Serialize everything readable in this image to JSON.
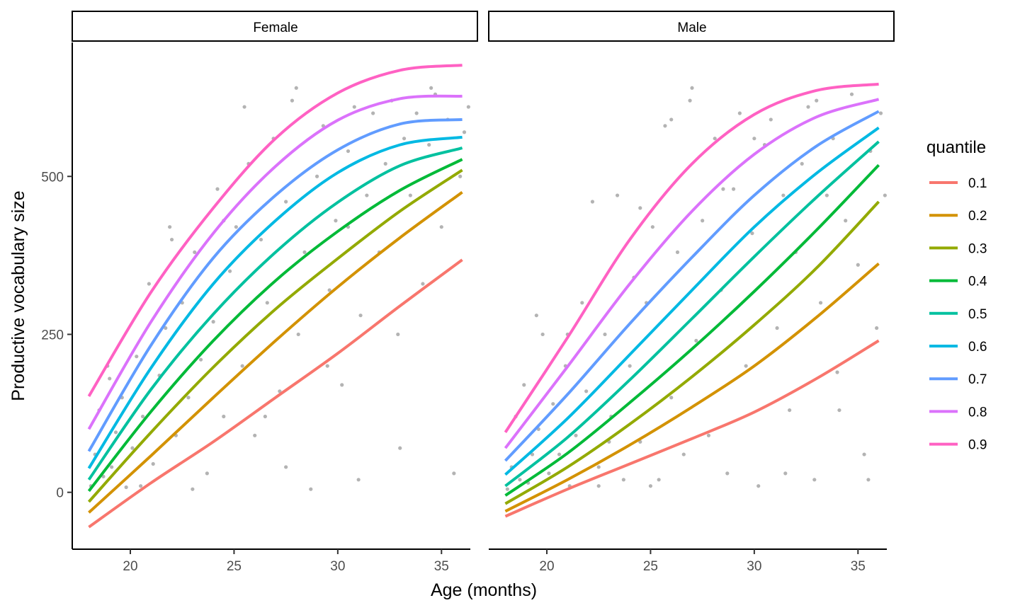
{
  "chart_data": {
    "type": "line",
    "xlabel": "Age (months)",
    "ylabel": "Productive vocabulary size",
    "xlim": [
      17.2,
      36.8
    ],
    "ylim": [
      -90,
      712
    ],
    "x_ticks": [
      20,
      25,
      30,
      35
    ],
    "y_ticks": [
      0,
      250,
      500
    ],
    "legend": {
      "title": "quantile",
      "position": "right"
    },
    "quantiles": [
      {
        "name": "0.1",
        "color": "#F8766D"
      },
      {
        "name": "0.2",
        "color": "#D39200"
      },
      {
        "name": "0.3",
        "color": "#93AA00"
      },
      {
        "name": "0.4",
        "color": "#00BA38"
      },
      {
        "name": "0.5",
        "color": "#00C19F"
      },
      {
        "name": "0.6",
        "color": "#00B9E3"
      },
      {
        "name": "0.7",
        "color": "#619CFF"
      },
      {
        "name": "0.8",
        "color": "#DB72FB"
      },
      {
        "name": "0.9",
        "color": "#FF61C3"
      }
    ],
    "x": [
      18,
      21,
      24,
      27,
      30,
      33,
      36
    ],
    "panels": [
      {
        "strip": "Female",
        "series": [
          {
            "name": "0.1",
            "values": [
              -55,
              15,
              80,
              150,
              220,
              295,
              368
            ]
          },
          {
            "name": "0.2",
            "values": [
              -32,
              58,
              150,
              240,
              325,
              403,
              475
            ]
          },
          {
            "name": "0.3",
            "values": [
              -15,
              95,
              198,
              290,
              370,
              445,
              510
            ]
          },
          {
            "name": "0.4",
            "values": [
              2,
              128,
              240,
              335,
              413,
              478,
              527
            ]
          },
          {
            "name": "0.5",
            "values": [
              20,
              163,
              282,
              380,
              459,
              517,
              545
            ]
          },
          {
            "name": "0.6",
            "values": [
              38,
              197,
              330,
              430,
              506,
              550,
              562
            ]
          },
          {
            "name": "0.7",
            "values": [
              65,
              233,
              371,
              470,
              542,
              583,
              590
            ]
          },
          {
            "name": "0.8",
            "values": [
              100,
              270,
              410,
              516,
              589,
              623,
              627
            ]
          },
          {
            "name": "0.9",
            "values": [
              152,
              317,
              450,
              560,
              632,
              668,
              676
            ]
          }
        ],
        "points": [
          [
            18.1,
            10
          ],
          [
            18.3,
            60
          ],
          [
            18.5,
            130
          ],
          [
            18.7,
            25
          ],
          [
            18.9,
            200
          ],
          [
            19.1,
            40
          ],
          [
            19.3,
            95
          ],
          [
            19.6,
            150
          ],
          [
            19.8,
            8
          ],
          [
            20.1,
            70
          ],
          [
            20.3,
            215
          ],
          [
            20.6,
            120
          ],
          [
            20.9,
            330
          ],
          [
            21.1,
            45
          ],
          [
            21.4,
            185
          ],
          [
            21.7,
            260
          ],
          [
            21.9,
            420
          ],
          [
            22.2,
            90
          ],
          [
            22.5,
            300
          ],
          [
            22.8,
            150
          ],
          [
            23.1,
            380
          ],
          [
            23.4,
            210
          ],
          [
            23.7,
            30
          ],
          [
            24.0,
            270
          ],
          [
            24.2,
            480
          ],
          [
            24.5,
            120
          ],
          [
            24.8,
            350
          ],
          [
            25.1,
            420
          ],
          [
            25.4,
            200
          ],
          [
            25.7,
            520
          ],
          [
            26.0,
            90
          ],
          [
            26.3,
            400
          ],
          [
            26.6,
            300
          ],
          [
            26.9,
            560
          ],
          [
            27.2,
            160
          ],
          [
            27.5,
            460
          ],
          [
            27.8,
            620
          ],
          [
            28.1,
            250
          ],
          [
            28.4,
            380
          ],
          [
            28.7,
            5
          ],
          [
            29.0,
            500
          ],
          [
            29.3,
            580
          ],
          [
            29.6,
            320
          ],
          [
            29.9,
            430
          ],
          [
            30.2,
            170
          ],
          [
            30.5,
            540
          ],
          [
            30.8,
            610
          ],
          [
            31.1,
            280
          ],
          [
            31.4,
            470
          ],
          [
            31.7,
            600
          ],
          [
            32.0,
            380
          ],
          [
            32.3,
            520
          ],
          [
            32.6,
            620
          ],
          [
            32.9,
            250
          ],
          [
            33.2,
            560
          ],
          [
            33.5,
            470
          ],
          [
            33.8,
            600
          ],
          [
            34.1,
            330
          ],
          [
            34.4,
            550
          ],
          [
            34.7,
            630
          ],
          [
            35.0,
            420
          ],
          [
            35.3,
            590
          ],
          [
            35.6,
            30
          ],
          [
            35.9,
            500
          ],
          [
            36.1,
            570
          ],
          [
            36.3,
            610
          ],
          [
            19.0,
            180
          ],
          [
            20.5,
            10
          ],
          [
            22.0,
            400
          ],
          [
            23.0,
            5
          ],
          [
            24.5,
            430
          ],
          [
            26.5,
            120
          ],
          [
            27.5,
            40
          ],
          [
            29.5,
            200
          ],
          [
            31.0,
            20
          ],
          [
            33.0,
            70
          ],
          [
            34.5,
            640
          ],
          [
            28.0,
            640
          ],
          [
            25.5,
            610
          ],
          [
            30.5,
            420
          ]
        ]
      },
      {
        "strip": "Male",
        "series": [
          {
            "name": "0.1",
            "values": [
              -38,
              5,
              45,
              85,
              127,
              180,
              240
            ]
          },
          {
            "name": "0.2",
            "values": [
              -30,
              20,
              75,
              135,
              200,
              277,
              362
            ]
          },
          {
            "name": "0.3",
            "values": [
              -18,
              40,
              108,
              183,
              265,
              355,
              460
            ]
          },
          {
            "name": "0.4",
            "values": [
              -5,
              62,
              142,
              227,
              318,
              415,
              518
            ]
          },
          {
            "name": "0.5",
            "values": [
              10,
              87,
              178,
              275,
              373,
              467,
              555
            ]
          },
          {
            "name": "0.6",
            "values": [
              28,
              117,
              218,
              320,
              420,
              505,
              577
            ]
          },
          {
            "name": "0.7",
            "values": [
              50,
              155,
              267,
              372,
              470,
              548,
              603
            ]
          },
          {
            "name": "0.8",
            "values": [
              70,
              199,
              330,
              445,
              535,
              594,
              622
            ]
          },
          {
            "name": "0.9",
            "values": [
              95,
              245,
              400,
              520,
              598,
              636,
              646
            ]
          }
        ],
        "points": [
          [
            18.1,
            5
          ],
          [
            18.3,
            40
          ],
          [
            18.5,
            120
          ],
          [
            18.7,
            20
          ],
          [
            18.9,
            170
          ],
          [
            19.1,
            15
          ],
          [
            19.3,
            60
          ],
          [
            19.6,
            100
          ],
          [
            19.8,
            250
          ],
          [
            20.1,
            30
          ],
          [
            20.3,
            140
          ],
          [
            20.6,
            60
          ],
          [
            20.9,
            200
          ],
          [
            21.1,
            10
          ],
          [
            21.4,
            90
          ],
          [
            21.7,
            300
          ],
          [
            21.9,
            160
          ],
          [
            22.2,
            460
          ],
          [
            22.5,
            40
          ],
          [
            22.8,
            250
          ],
          [
            23.1,
            120
          ],
          [
            23.4,
            470
          ],
          [
            23.7,
            20
          ],
          [
            24.0,
            200
          ],
          [
            24.2,
            340
          ],
          [
            24.5,
            80
          ],
          [
            24.8,
            300
          ],
          [
            25.1,
            420
          ],
          [
            25.4,
            20
          ],
          [
            25.7,
            580
          ],
          [
            26.0,
            150
          ],
          [
            26.3,
            380
          ],
          [
            26.6,
            60
          ],
          [
            26.9,
            620
          ],
          [
            27.2,
            240
          ],
          [
            27.5,
            430
          ],
          [
            27.8,
            90
          ],
          [
            28.1,
            560
          ],
          [
            28.4,
            320
          ],
          [
            28.7,
            30
          ],
          [
            29.0,
            480
          ],
          [
            29.3,
            600
          ],
          [
            29.6,
            200
          ],
          [
            29.9,
            410
          ],
          [
            30.2,
            10
          ],
          [
            30.5,
            550
          ],
          [
            30.8,
            590
          ],
          [
            31.1,
            260
          ],
          [
            31.4,
            470
          ],
          [
            31.7,
            130
          ],
          [
            32.0,
            380
          ],
          [
            32.3,
            520
          ],
          [
            32.6,
            610
          ],
          [
            32.9,
            20
          ],
          [
            33.2,
            300
          ],
          [
            33.5,
            470
          ],
          [
            33.8,
            560
          ],
          [
            34.1,
            130
          ],
          [
            34.4,
            430
          ],
          [
            34.7,
            630
          ],
          [
            35.0,
            360
          ],
          [
            35.3,
            60
          ],
          [
            35.6,
            540
          ],
          [
            35.9,
            260
          ],
          [
            36.1,
            600
          ],
          [
            36.3,
            470
          ],
          [
            19.5,
            280
          ],
          [
            21.0,
            250
          ],
          [
            23.0,
            80
          ],
          [
            24.5,
            450
          ],
          [
            26.0,
            590
          ],
          [
            27.0,
            640
          ],
          [
            28.5,
            480
          ],
          [
            30.0,
            560
          ],
          [
            31.5,
            30
          ],
          [
            33.0,
            620
          ],
          [
            34.0,
            190
          ],
          [
            35.5,
            20
          ],
          [
            22.5,
            10
          ],
          [
            25.0,
            10
          ]
        ]
      }
    ]
  }
}
